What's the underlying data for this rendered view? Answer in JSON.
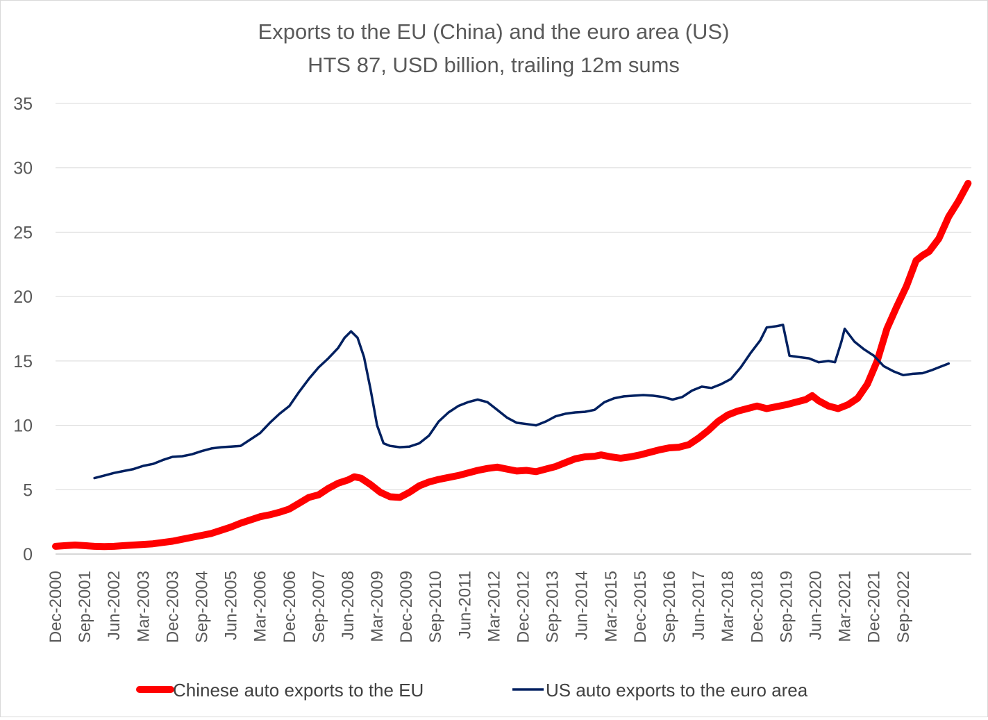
{
  "chart_data": {
    "type": "line",
    "title": "Exports to the EU (China) and the euro area (US)",
    "subtitle": "HTS 87, USD billion, trailing 12m sums",
    "xlabel": "",
    "ylabel": "",
    "ylim": [
      0,
      35
    ],
    "yticks": [
      "0",
      "5",
      "10",
      "15",
      "20",
      "25",
      "30",
      "35"
    ],
    "grid": true,
    "legend_position": "bottom",
    "x_tick_labels": [
      "Dec-2000",
      "Sep-2001",
      "Jun-2002",
      "Mar-2003",
      "Dec-2003",
      "Sep-2004",
      "Jun-2005",
      "Mar-2006",
      "Dec-2006",
      "Sep-2007",
      "Jun-2008",
      "Mar-2009",
      "Dec-2009",
      "Sep-2010",
      "Jun-2011",
      "Mar-2012",
      "Dec-2012",
      "Sep-2013",
      "Jun-2014",
      "Mar-2015",
      "Dec-2015",
      "Sep-2016",
      "Jun-2017",
      "Mar-2018",
      "Dec-2018",
      "Sep-2019",
      "Jun-2020",
      "Mar-2021",
      "Dec-2021",
      "Sep-2022"
    ],
    "x_start": "Dec-2000",
    "x_unit": "months since Dec-2000",
    "series": [
      {
        "name": "Chinese auto exports to the EU",
        "color": "#ff0000",
        "points": [
          [
            0,
            0.6
          ],
          [
            3,
            0.65
          ],
          [
            6,
            0.7
          ],
          [
            9,
            0.65
          ],
          [
            12,
            0.6
          ],
          [
            15,
            0.58
          ],
          [
            18,
            0.6
          ],
          [
            21,
            0.65
          ],
          [
            24,
            0.7
          ],
          [
            27,
            0.75
          ],
          [
            30,
            0.8
          ],
          [
            33,
            0.9
          ],
          [
            36,
            1.0
          ],
          [
            39,
            1.15
          ],
          [
            42,
            1.3
          ],
          [
            45,
            1.45
          ],
          [
            48,
            1.6
          ],
          [
            51,
            1.85
          ],
          [
            54,
            2.1
          ],
          [
            57,
            2.4
          ],
          [
            60,
            2.65
          ],
          [
            63,
            2.9
          ],
          [
            66,
            3.05
          ],
          [
            69,
            3.25
          ],
          [
            72,
            3.5
          ],
          [
            75,
            3.95
          ],
          [
            78,
            4.4
          ],
          [
            81,
            4.6
          ],
          [
            84,
            5.1
          ],
          [
            87,
            5.5
          ],
          [
            90,
            5.75
          ],
          [
            92,
            6.0
          ],
          [
            94,
            5.9
          ],
          [
            97,
            5.4
          ],
          [
            100,
            4.8
          ],
          [
            103,
            4.45
          ],
          [
            106,
            4.4
          ],
          [
            109,
            4.8
          ],
          [
            112,
            5.3
          ],
          [
            115,
            5.6
          ],
          [
            118,
            5.8
          ],
          [
            121,
            5.95
          ],
          [
            124,
            6.1
          ],
          [
            127,
            6.3
          ],
          [
            130,
            6.5
          ],
          [
            133,
            6.65
          ],
          [
            136,
            6.75
          ],
          [
            139,
            6.6
          ],
          [
            142,
            6.45
          ],
          [
            145,
            6.5
          ],
          [
            148,
            6.4
          ],
          [
            151,
            6.6
          ],
          [
            154,
            6.8
          ],
          [
            157,
            7.1
          ],
          [
            160,
            7.4
          ],
          [
            163,
            7.55
          ],
          [
            166,
            7.6
          ],
          [
            168,
            7.7
          ],
          [
            171,
            7.55
          ],
          [
            174,
            7.45
          ],
          [
            177,
            7.55
          ],
          [
            180,
            7.7
          ],
          [
            183,
            7.9
          ],
          [
            186,
            8.1
          ],
          [
            189,
            8.25
          ],
          [
            192,
            8.3
          ],
          [
            195,
            8.5
          ],
          [
            198,
            9.0
          ],
          [
            201,
            9.6
          ],
          [
            204,
            10.3
          ],
          [
            207,
            10.8
          ],
          [
            210,
            11.1
          ],
          [
            213,
            11.3
          ],
          [
            216,
            11.5
          ],
          [
            219,
            11.3
          ],
          [
            222,
            11.45
          ],
          [
            225,
            11.6
          ],
          [
            228,
            11.8
          ],
          [
            231,
            12.0
          ],
          [
            233,
            12.3
          ],
          [
            235,
            11.9
          ],
          [
            238,
            11.5
          ],
          [
            241,
            11.3
          ],
          [
            244,
            11.6
          ],
          [
            247,
            12.1
          ],
          [
            250,
            13.2
          ],
          [
            253,
            15.0
          ],
          [
            256,
            17.5
          ],
          [
            259,
            19.2
          ],
          [
            262,
            20.8
          ],
          [
            265,
            22.8
          ],
          [
            267,
            23.2
          ],
          [
            269,
            23.5
          ],
          [
            272,
            24.5
          ],
          [
            275,
            26.2
          ],
          [
            278,
            27.4
          ],
          [
            281,
            28.8
          ]
        ]
      },
      {
        "name": "US auto exports to the euro area",
        "color": "#002060",
        "points": [
          [
            12,
            5.9
          ],
          [
            15,
            6.1
          ],
          [
            18,
            6.3
          ],
          [
            21,
            6.45
          ],
          [
            24,
            6.6
          ],
          [
            27,
            6.85
          ],
          [
            30,
            7.0
          ],
          [
            33,
            7.3
          ],
          [
            36,
            7.55
          ],
          [
            39,
            7.6
          ],
          [
            42,
            7.75
          ],
          [
            45,
            8.0
          ],
          [
            48,
            8.2
          ],
          [
            51,
            8.3
          ],
          [
            54,
            8.35
          ],
          [
            57,
            8.4
          ],
          [
            60,
            8.9
          ],
          [
            63,
            9.4
          ],
          [
            66,
            10.2
          ],
          [
            69,
            10.9
          ],
          [
            72,
            11.5
          ],
          [
            75,
            12.6
          ],
          [
            78,
            13.6
          ],
          [
            81,
            14.5
          ],
          [
            84,
            15.2
          ],
          [
            87,
            16.0
          ],
          [
            89,
            16.8
          ],
          [
            91,
            17.3
          ],
          [
            93,
            16.8
          ],
          [
            95,
            15.3
          ],
          [
            97,
            12.8
          ],
          [
            99,
            10.0
          ],
          [
            101,
            8.6
          ],
          [
            103,
            8.4
          ],
          [
            106,
            8.3
          ],
          [
            109,
            8.35
          ],
          [
            112,
            8.6
          ],
          [
            115,
            9.2
          ],
          [
            118,
            10.3
          ],
          [
            121,
            11.0
          ],
          [
            124,
            11.5
          ],
          [
            127,
            11.8
          ],
          [
            130,
            12.0
          ],
          [
            133,
            11.8
          ],
          [
            136,
            11.2
          ],
          [
            139,
            10.6
          ],
          [
            142,
            10.2
          ],
          [
            145,
            10.1
          ],
          [
            148,
            10.0
          ],
          [
            151,
            10.3
          ],
          [
            154,
            10.7
          ],
          [
            157,
            10.9
          ],
          [
            160,
            11.0
          ],
          [
            163,
            11.05
          ],
          [
            166,
            11.2
          ],
          [
            169,
            11.8
          ],
          [
            172,
            12.1
          ],
          [
            175,
            12.25
          ],
          [
            178,
            12.3
          ],
          [
            181,
            12.35
          ],
          [
            184,
            12.3
          ],
          [
            187,
            12.2
          ],
          [
            190,
            12.0
          ],
          [
            193,
            12.2
          ],
          [
            196,
            12.7
          ],
          [
            199,
            13.0
          ],
          [
            202,
            12.9
          ],
          [
            205,
            13.2
          ],
          [
            208,
            13.6
          ],
          [
            211,
            14.5
          ],
          [
            214,
            15.6
          ],
          [
            217,
            16.6
          ],
          [
            219,
            17.6
          ],
          [
            222,
            17.7
          ],
          [
            224,
            17.8
          ],
          [
            226,
            15.4
          ],
          [
            229,
            15.3
          ],
          [
            232,
            15.2
          ],
          [
            235,
            14.9
          ],
          [
            238,
            15.0
          ],
          [
            240,
            14.9
          ],
          [
            242,
            16.5
          ],
          [
            243,
            17.5
          ],
          [
            246,
            16.5
          ],
          [
            249,
            15.9
          ],
          [
            252,
            15.4
          ],
          [
            255,
            14.6
          ],
          [
            258,
            14.2
          ],
          [
            261,
            13.9
          ],
          [
            264,
            14.0
          ],
          [
            267,
            14.05
          ],
          [
            270,
            14.3
          ],
          [
            273,
            14.6
          ],
          [
            275,
            14.8
          ]
        ]
      }
    ]
  }
}
